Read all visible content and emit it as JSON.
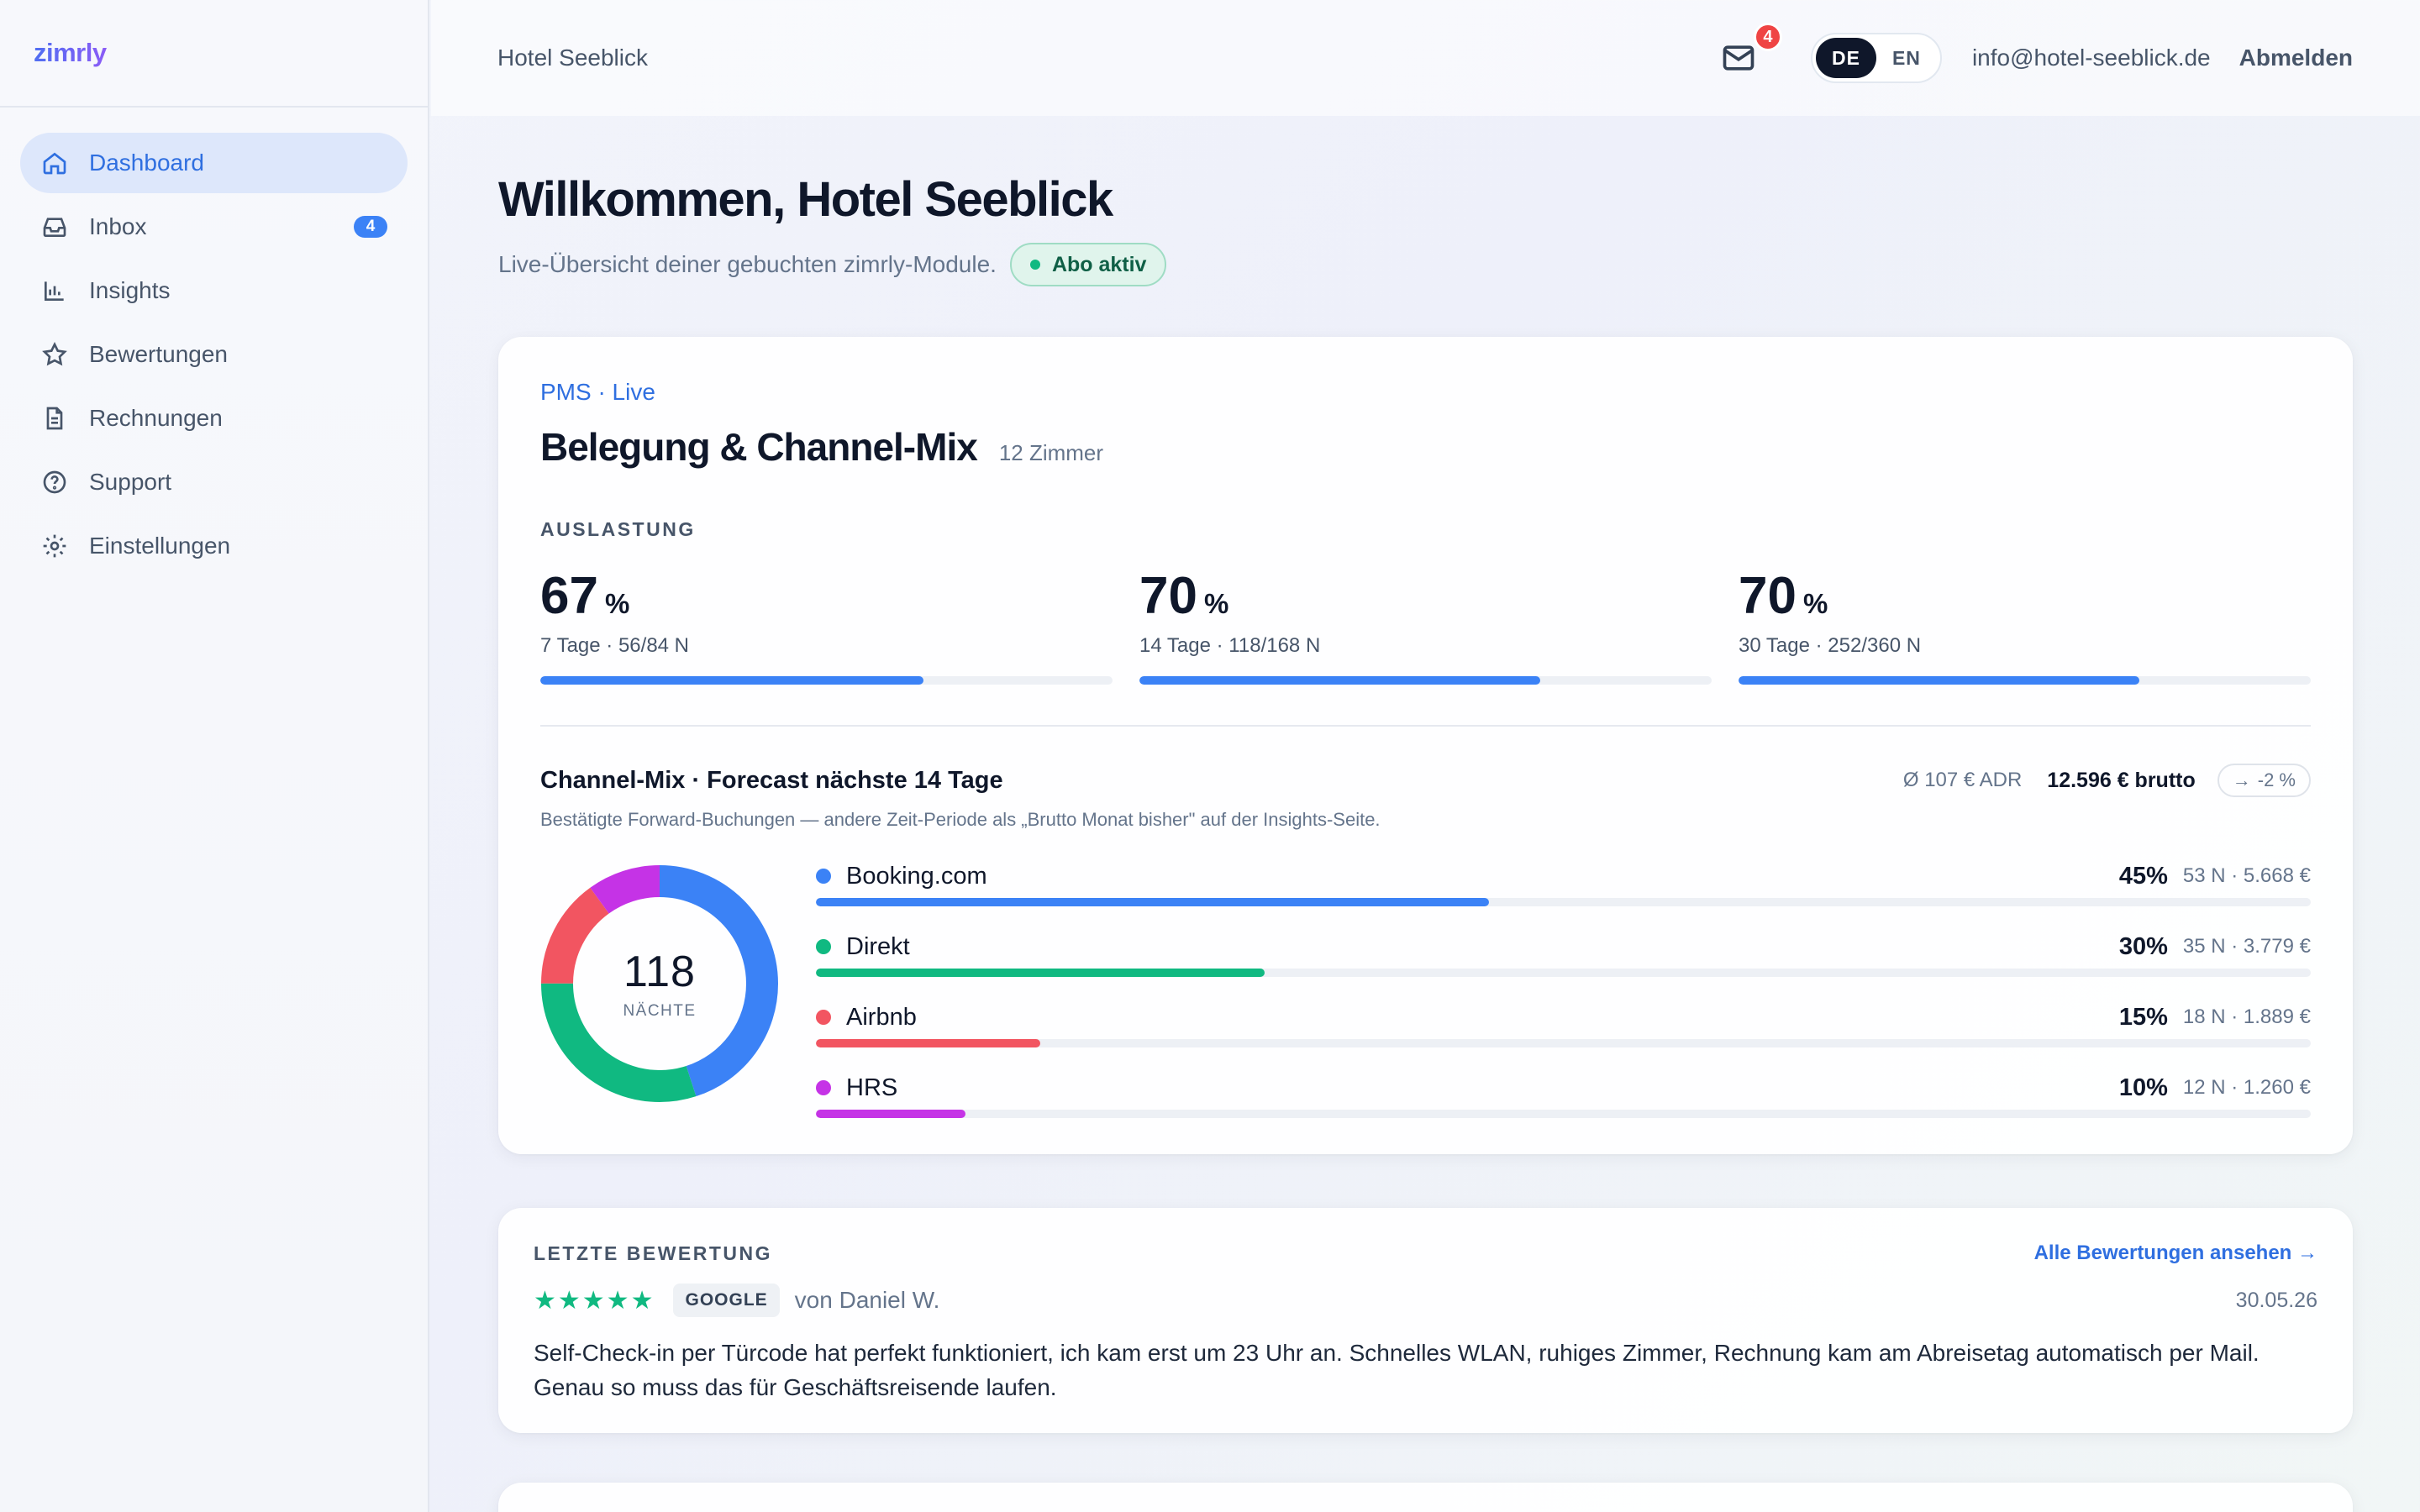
{
  "brand": {
    "name": "zimrly"
  },
  "sidebar": {
    "items": [
      {
        "label": "Dashboard",
        "icon": "home-icon",
        "active": true
      },
      {
        "label": "Inbox",
        "icon": "inbox-icon",
        "badge": "4"
      },
      {
        "label": "Insights",
        "icon": "bar-chart-icon"
      },
      {
        "label": "Bewertungen",
        "icon": "star-icon"
      },
      {
        "label": "Rechnungen",
        "icon": "document-icon"
      },
      {
        "label": "Support",
        "icon": "help-circle-icon"
      },
      {
        "label": "Einstellungen",
        "icon": "gear-icon"
      }
    ]
  },
  "topbar": {
    "hotel": "Hotel Seeblick",
    "mail_badge": "4",
    "lang_de": "DE",
    "lang_en": "EN",
    "lang_active": "DE",
    "email": "info@hotel-seeblick.de",
    "logout": "Abmelden"
  },
  "welcome": {
    "title": "Willkommen, Hotel Seeblick",
    "subtitle": "Live-Übersicht deiner gebuchten zimrly-Module.",
    "badge": "Abo aktiv"
  },
  "pms": {
    "tag": "PMS · Live",
    "title": "Belegung & Channel-Mix",
    "rooms": "12 Zimmer",
    "occupancy_label": "AUSLASTUNG",
    "occupancy": [
      {
        "value": "67",
        "unit": "%",
        "meta": "7 Tage · 56/84 N",
        "fraction": 0.67
      },
      {
        "value": "70",
        "unit": "%",
        "meta": "14 Tage · 118/168 N",
        "fraction": 0.7
      },
      {
        "value": "70",
        "unit": "%",
        "meta": "30 Tage · 252/360 N",
        "fraction": 0.7
      }
    ],
    "channel_mix": {
      "title": "Channel-Mix · Forecast nächste 14 Tage",
      "adr": "Ø 107 € ADR",
      "brutto": "12.596 € brutto",
      "trend": "-2 %",
      "note": "Bestätigte Forward-Buchungen — andere Zeit-Periode als „Brutto Monat bisher\" auf der Insights-Seite.",
      "total_nights": "118",
      "total_label": "NÄCHTE",
      "channels": [
        {
          "name": "Booking.com",
          "pct": "45%",
          "meta": "53 N · 5.668 €",
          "share": 0.45,
          "color": "#3b82f6"
        },
        {
          "name": "Direkt",
          "pct": "30%",
          "meta": "35 N · 3.779 €",
          "share": 0.3,
          "color": "#10b981"
        },
        {
          "name": "Airbnb",
          "pct": "15%",
          "meta": "18 N · 1.889 €",
          "share": 0.15,
          "color": "#f25561"
        },
        {
          "name": "HRS",
          "pct": "10%",
          "meta": "12 N · 1.260 €",
          "share": 0.1,
          "color": "#c533e6"
        }
      ]
    }
  },
  "review": {
    "label": "LETZTE BEWERTUNG",
    "link": "Alle Bewertungen ansehen →",
    "stars": "★★★★★",
    "source": "GOOGLE",
    "author": "von Daniel W.",
    "date": "30.05.26",
    "text": "Self-Check-in per Türcode hat perfekt funktioniert, ich kam erst um 23 Uhr an. Schnelles WLAN, ruhiges Zimmer, Rechnung kam am Abreisetag automatisch per Mail. Genau so muss das für Geschäftsreisende laufen."
  },
  "colors": {
    "accent": "#2f6fe0",
    "bar": "#3b82f6",
    "success": "#10b981"
  }
}
